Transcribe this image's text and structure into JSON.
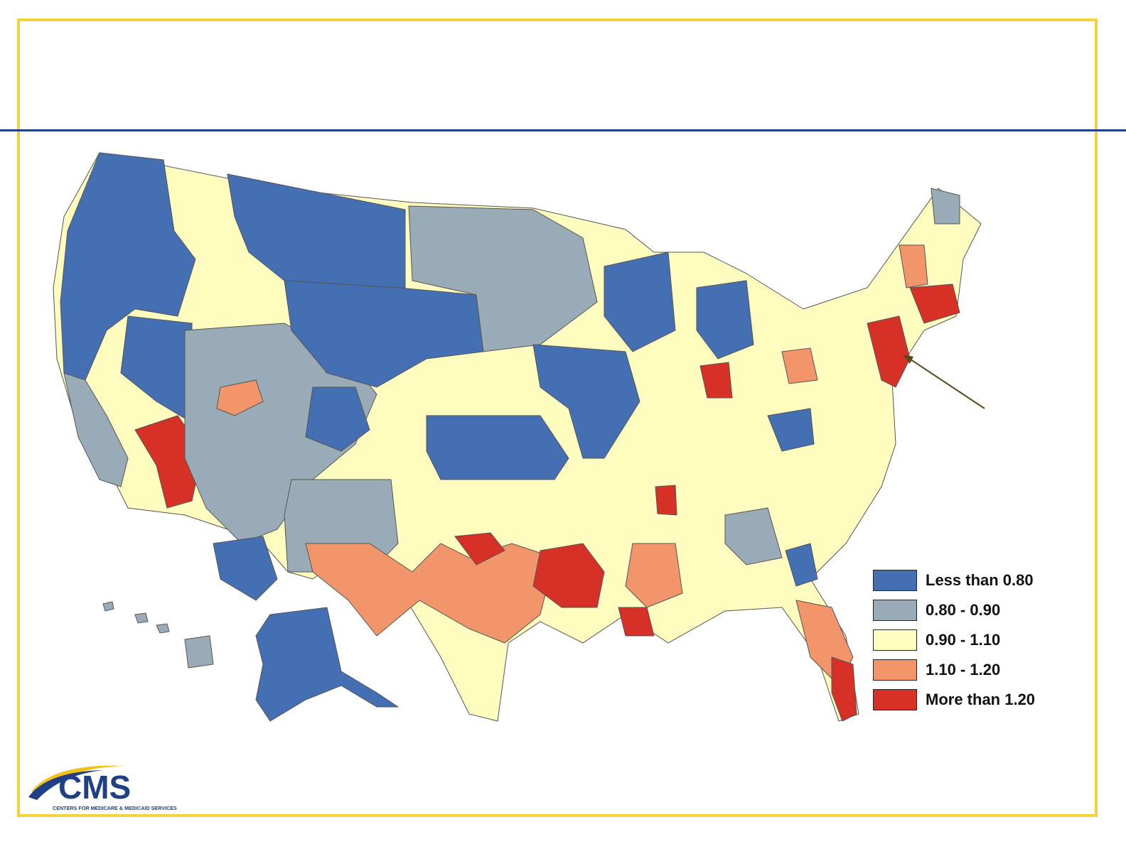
{
  "legend": {
    "items": [
      {
        "label": "Less than 0.80",
        "color": "#4470b3"
      },
      {
        "label": "0.80 - 0.90",
        "color": "#9aabb8"
      },
      {
        "label": "0.90 - 1.10",
        "color": "#fffcc0"
      },
      {
        "label": "1.10 - 1.20",
        "color": "#f3956a"
      },
      {
        "label": "More than 1.20",
        "color": "#d73027"
      }
    ]
  },
  "logo": {
    "wordmark": "CMS",
    "tagline": "CENTERS FOR MEDICARE & MEDICAID SERVICES",
    "colors": {
      "navy": "#1f3f86",
      "gold": "#f2c21b"
    }
  },
  "colors": {
    "frame": "#f2d33d",
    "title_rule": "#1f3f86",
    "arrow": "#5a4a1a"
  }
}
